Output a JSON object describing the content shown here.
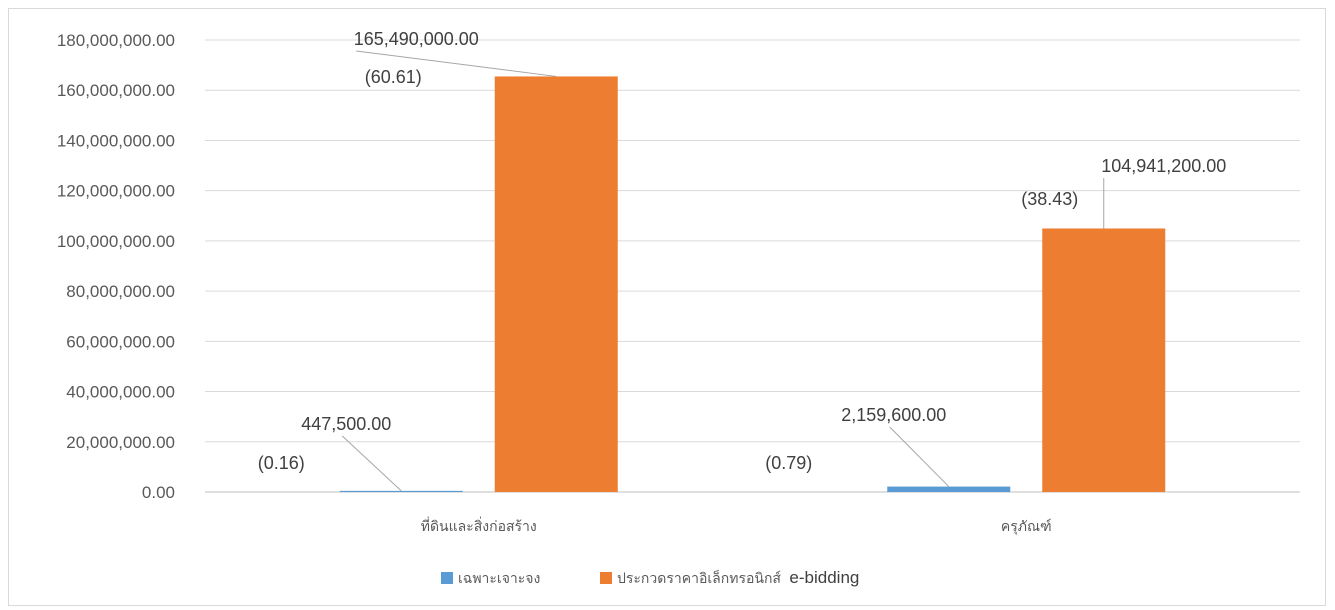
{
  "chart_data": {
    "type": "bar",
    "categories": [
      "ที่ดินและสิ่งก่อสร้าง",
      "ครุภัณฑ์"
    ],
    "series": [
      {
        "name": "เฉพาะเจาะจง",
        "color": "#5b9bd5",
        "values": [
          447500,
          2159600
        ],
        "value_labels": [
          "447,500.00",
          "2,159,600.00"
        ],
        "percent_labels": [
          "(0.16)",
          "(0.79)"
        ]
      },
      {
        "name": "ประกวดราคาอิเล็กทรอนิกส์ e-bidding",
        "color": "#ed7d31",
        "values": [
          165490000,
          104941200
        ],
        "value_labels": [
          "165,490,000.00",
          "104,941,200.00"
        ],
        "percent_labels": [
          "(60.61)",
          "(38.43)"
        ]
      }
    ],
    "ylim": [
      0,
      180000000
    ],
    "y_ticks": [
      0,
      20000000,
      40000000,
      60000000,
      80000000,
      100000000,
      120000000,
      140000000,
      160000000,
      180000000
    ],
    "y_tick_labels": [
      "0.00",
      "20,000,000.00",
      "40,000,000.00",
      "60,000,000.00",
      "80,000,000.00",
      "100,000,000.00",
      "120,000,000.00",
      "140,000,000.00",
      "160,000,000.00",
      "180,000,000.00"
    ],
    "grid": true,
    "legend_position": "bottom",
    "legend": {
      "label_1": "เฉพาะเจาะจง",
      "label_2_thai": "ประกวดราคาอิเล็กทรอนิกส์",
      "label_2_latin": "e-bidding"
    },
    "colors": {
      "gridline": "#d9d9d9",
      "axis": "#bfbfbf",
      "leader": "#a6a6a6"
    }
  }
}
